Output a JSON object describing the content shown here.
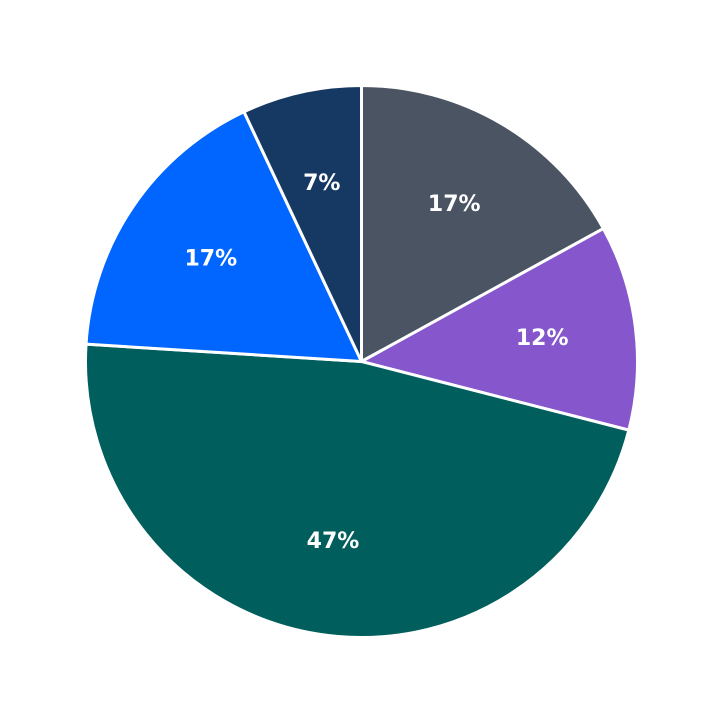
{
  "chart_data": {
    "type": "pie",
    "start_angle_deg": 90,
    "direction": "clockwise",
    "slices": [
      {
        "value": 17,
        "label": "17%",
        "color": "#4a5463"
      },
      {
        "value": 12,
        "label": "12%",
        "color": "#8556cc"
      },
      {
        "value": 47,
        "label": "47%",
        "color": "#005e5d"
      },
      {
        "value": 17,
        "label": "17%",
        "color": "#0066ff"
      },
      {
        "value": 7,
        "label": "7%",
        "color": "#153963"
      }
    ]
  }
}
